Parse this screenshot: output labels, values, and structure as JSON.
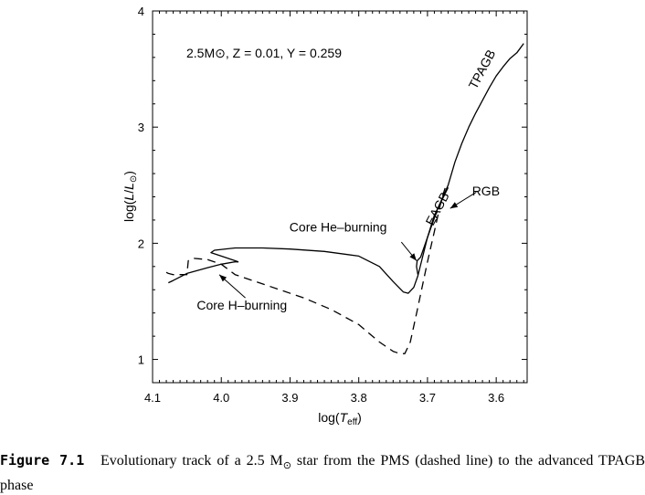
{
  "chart_data": {
    "type": "line",
    "title": "",
    "xlabel": "log(T_eff)",
    "ylabel": "log(L/L_sun)",
    "xlim": [
      4.1,
      3.555
    ],
    "ylim": [
      0.8,
      4.0
    ],
    "x_reversed": true,
    "grid": false,
    "x_ticks": [
      4.1,
      4.0,
      3.9,
      3.8,
      3.7,
      3.6
    ],
    "x_tick_labels": [
      "4.1",
      "4.0",
      "3.9",
      "3.8",
      "3.7",
      "3.6"
    ],
    "y_ticks": [
      1,
      2,
      3,
      4
    ],
    "y_tick_labels": [
      "1",
      "2",
      "3",
      "4"
    ],
    "parameters_text": "2.5M⊙, Z = 0.01, Y = 0.259",
    "series": [
      {
        "style": "dashed",
        "x": [
          4.08,
          4.077,
          4.07,
          4.05,
          4.048,
          4.04,
          4.02,
          4.0,
          3.98,
          3.93,
          3.88,
          3.84,
          3.8,
          3.77,
          3.75,
          3.74,
          3.733,
          3.725,
          3.715,
          3.7,
          3.69,
          3.68,
          3.672
        ],
        "y": [
          1.75,
          1.74,
          1.73,
          1.73,
          1.85,
          1.87,
          1.86,
          1.82,
          1.73,
          1.63,
          1.53,
          1.43,
          1.3,
          1.15,
          1.07,
          1.05,
          1.05,
          1.15,
          1.42,
          1.84,
          2.1,
          2.37,
          2.52
        ]
      },
      {
        "style": "solid",
        "x": [
          4.077,
          4.07,
          4.05,
          4.02,
          4.0,
          3.98,
          3.975
        ],
        "y": [
          1.66,
          1.68,
          1.74,
          1.79,
          1.82,
          1.84,
          1.84
        ]
      },
      {
        "style": "solid",
        "x": [
          3.975,
          4.0,
          4.015,
          4.01,
          3.98,
          3.94,
          3.9,
          3.85,
          3.8,
          3.77,
          3.75,
          3.735,
          3.728,
          3.72,
          3.714,
          3.7,
          3.69,
          3.67
        ],
        "y": [
          1.84,
          1.89,
          1.92,
          1.94,
          1.96,
          1.96,
          1.95,
          1.93,
          1.89,
          1.8,
          1.67,
          1.58,
          1.57,
          1.62,
          1.72,
          2.05,
          2.24,
          2.48
        ]
      },
      {
        "style": "solid",
        "x": [
          3.714,
          3.716,
          3.715,
          3.71,
          3.7,
          3.685,
          3.67,
          3.66,
          3.65,
          3.64,
          3.63,
          3.62,
          3.61,
          3.6,
          3.59,
          3.58,
          3.57,
          3.565,
          3.56
        ],
        "y": [
          1.73,
          1.8,
          1.85,
          1.88,
          2.05,
          2.3,
          2.5,
          2.7,
          2.86,
          3.0,
          3.12,
          3.23,
          3.34,
          3.44,
          3.52,
          3.59,
          3.64,
          3.68,
          3.72
        ]
      }
    ],
    "annotations": [
      {
        "text": "TPAGB",
        "x": 3.615,
        "y": 3.48,
        "rotation": -62
      },
      {
        "text": "EAGB",
        "x": 3.68,
        "y": 2.28,
        "rotation": -62
      },
      {
        "text": "RGB",
        "x": 3.615,
        "y": 2.41
      },
      {
        "text": "Core He–burning",
        "x": 3.83,
        "y": 2.1
      },
      {
        "text": "Core H–burning",
        "x": 3.97,
        "y": 1.43
      }
    ],
    "arrows": [
      {
        "from": [
          3.738,
          2.01
        ],
        "to": [
          3.716,
          1.85
        ]
      },
      {
        "from": [
          3.629,
          2.44
        ],
        "to": [
          3.667,
          2.3
        ]
      },
      {
        "from": [
          3.965,
          1.53
        ],
        "to": [
          4.003,
          1.73
        ]
      }
    ]
  },
  "caption": {
    "label": "Figure 7.1",
    "text_before": "Evolutionary track of a 2.5 M",
    "sun_symbol": "⊙",
    "text_after": " star from the PMS (dashed line) to the advanced TPAGB phase"
  }
}
